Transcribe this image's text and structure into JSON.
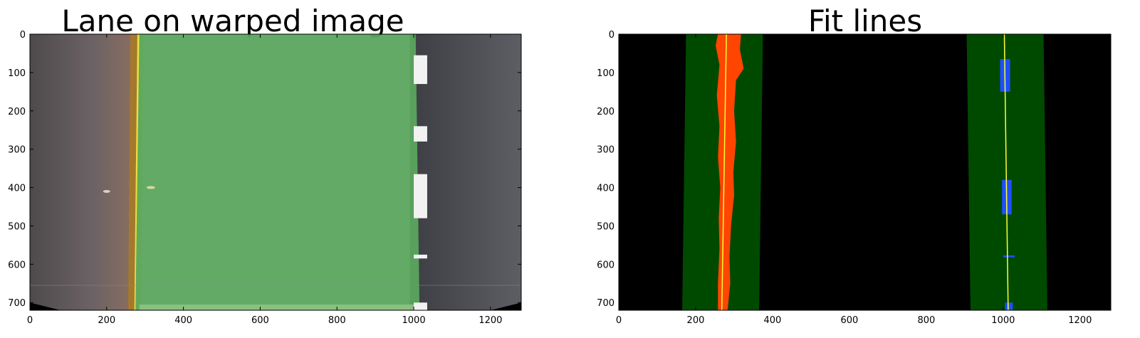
{
  "chart_data": [
    {
      "type": "image",
      "title": "Lane on warped image",
      "xlim": [
        0,
        1280
      ],
      "ylim": [
        720,
        0
      ],
      "xticks": [
        0,
        200,
        400,
        600,
        800,
        1000,
        1200
      ],
      "yticks": [
        0,
        100,
        200,
        300,
        400,
        500,
        600,
        700
      ],
      "lane_polygon": {
        "color": "#5aa55e",
        "left_edge": [
          [
            285,
            0
          ],
          [
            275,
            720
          ]
        ],
        "right_edge": [
          [
            1005,
            0
          ],
          [
            1015,
            720
          ]
        ]
      },
      "colors": {
        "road_left": "#5c5658",
        "road_right": "#55565c",
        "yellow_line": "#e8e040",
        "white_marks": "#f2f2f2"
      }
    },
    {
      "type": "image",
      "title": "Fit lines",
      "xlim": [
        0,
        1280
      ],
      "ylim": [
        720,
        0
      ],
      "xticks": [
        0,
        200,
        400,
        600,
        800,
        1000,
        1200
      ],
      "yticks": [
        0,
        100,
        200,
        300,
        400,
        500,
        600,
        700
      ],
      "search_windows": [
        {
          "name": "left",
          "top": [
            175,
            375
          ],
          "bottom": [
            165,
            365
          ]
        },
        {
          "name": "right",
          "top": [
            905,
            1105
          ],
          "bottom": [
            915,
            1115
          ]
        }
      ],
      "fit_lines": [
        {
          "name": "left",
          "x_top": 280,
          "x_bottom": 268,
          "color": "#ffff33"
        },
        {
          "name": "right",
          "x_top": 1003,
          "x_bottom": 1013,
          "color": "#ffff33"
        }
      ],
      "pixel_blobs": [
        {
          "name": "left",
          "color": "#ff4500"
        },
        {
          "name": "right",
          "color": "#1e50ff"
        }
      ],
      "colors": {
        "background": "#000000",
        "window": "#004a00"
      }
    }
  ]
}
